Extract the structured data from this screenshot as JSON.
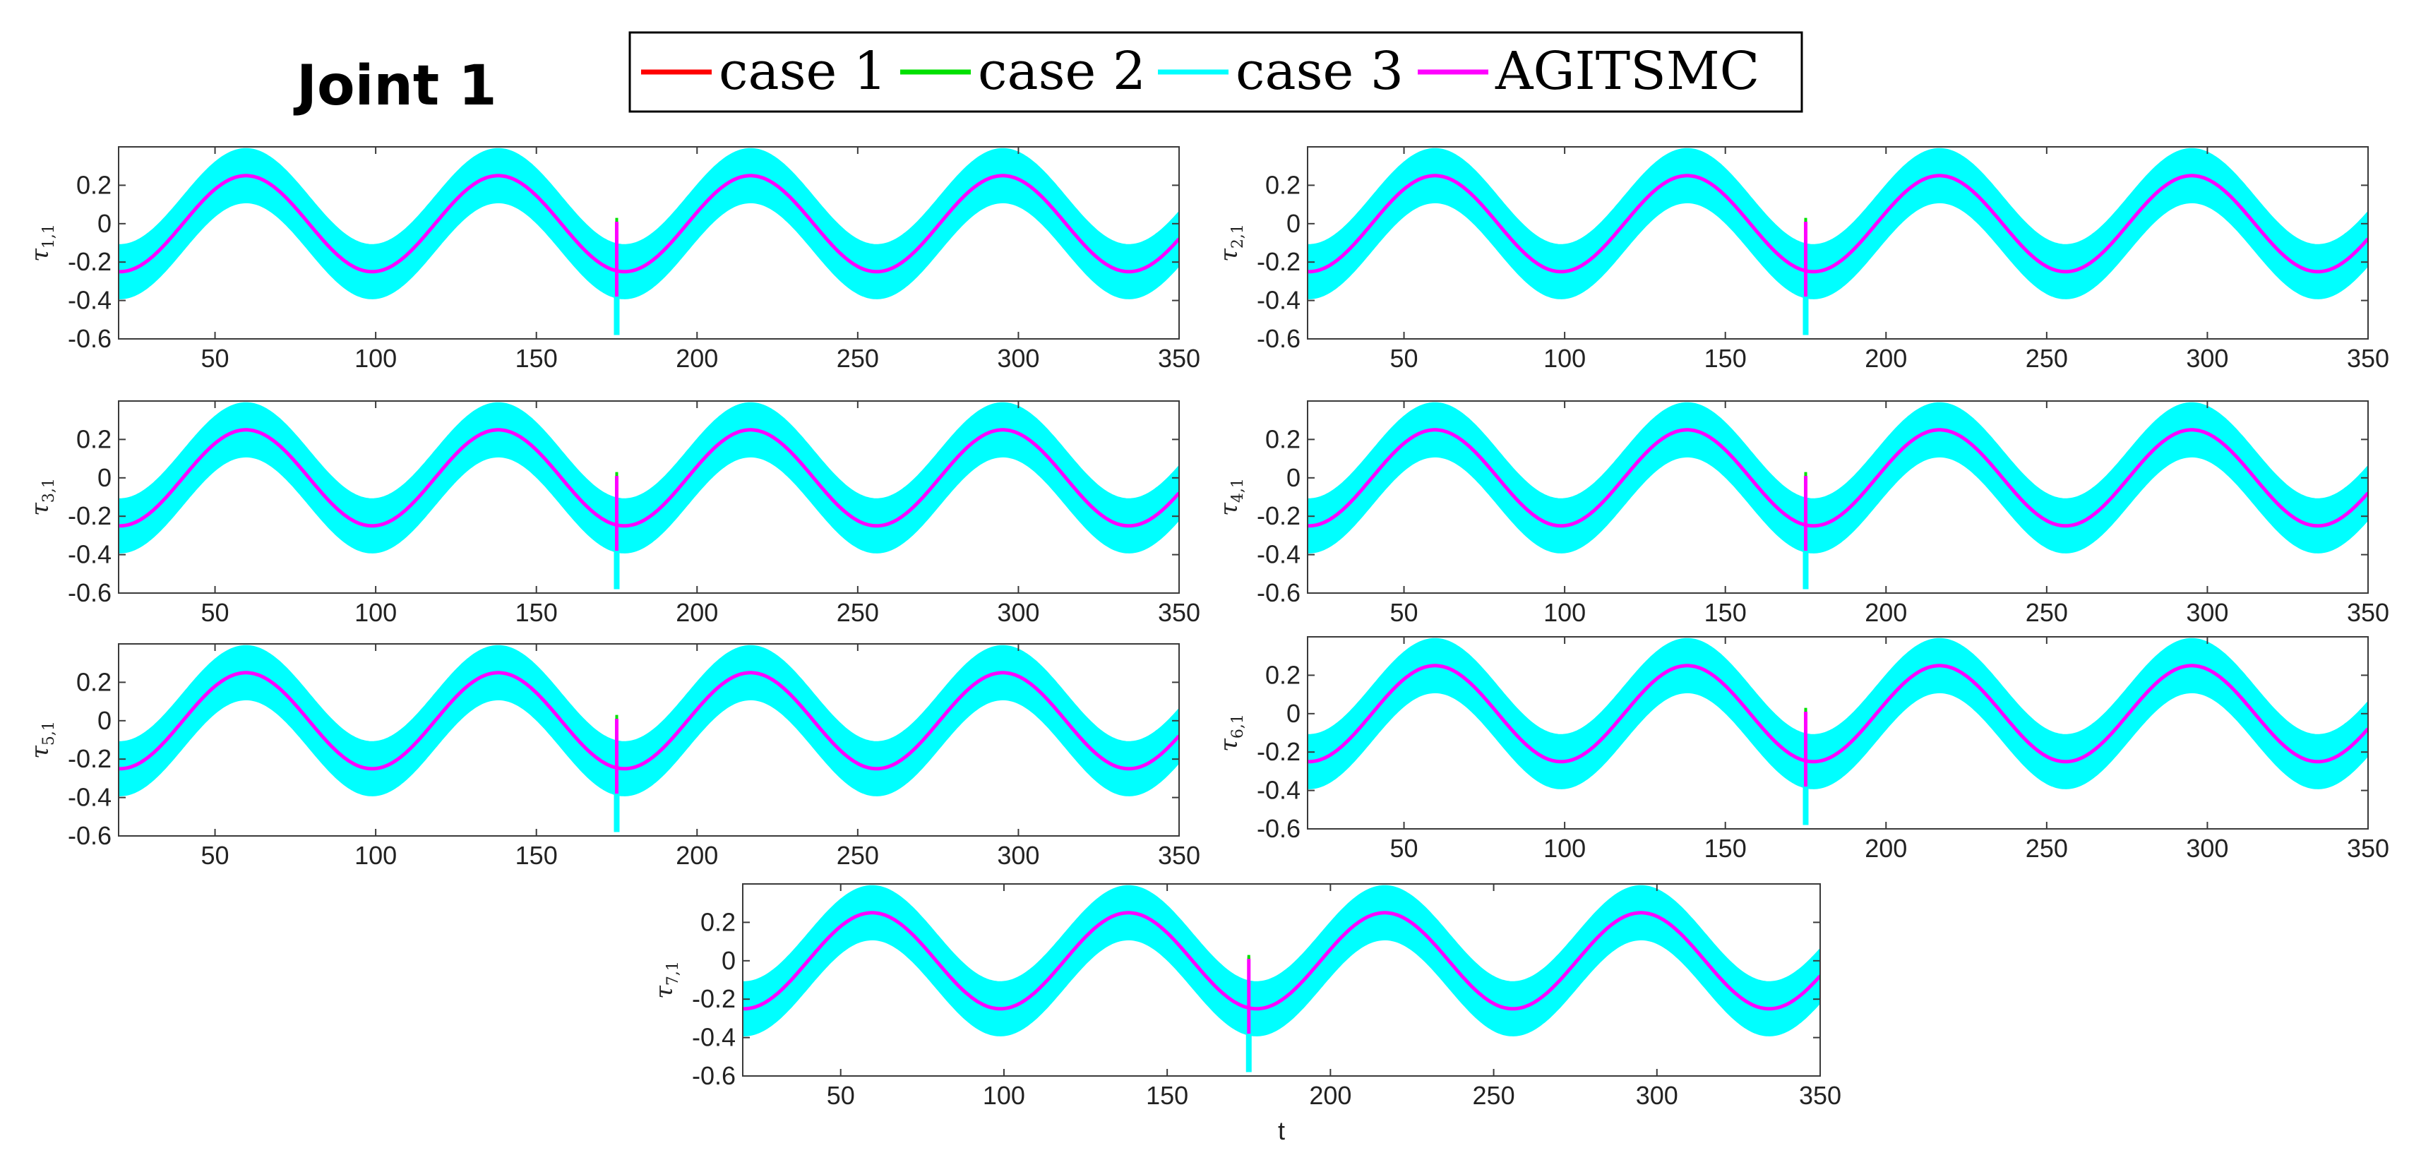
{
  "figure": {
    "title": "Joint 1"
  },
  "legend": [
    {
      "name": "case 1",
      "color": "#ff0000"
    },
    {
      "name": "case 2",
      "color": "#00e000"
    },
    {
      "name": "case 3",
      "color": "#00ffff"
    },
    {
      "name": "AGITSMC",
      "color": "#ff00ff"
    }
  ],
  "chart_data": [
    {
      "type": "line",
      "ylabel_base": "τ",
      "ylabel_sub": "1,1",
      "xlabel": "",
      "xlim": [
        20,
        350
      ],
      "ylim": [
        -0.6,
        0.4
      ],
      "xticks": [
        50,
        100,
        150,
        200,
        250,
        300,
        350
      ],
      "yticks": [
        0.2,
        0,
        -0.2,
        -0.4,
        -0.6
      ],
      "series": [
        {
          "name": "case 1",
          "function": "0.25*sin(2*pi*(t-40)/78.5)",
          "spike_at_t": 175,
          "spike_range": [
            -0.35,
            0.02
          ]
        },
        {
          "name": "case 2",
          "function": "0.25*sin(2*pi*(t-40)/78.5)",
          "spike_at_t": 175,
          "spike_range": [
            -0.35,
            0.03
          ]
        },
        {
          "name": "case 3",
          "function": "0.25*sin(2*pi*(t-40)/78.5) ± 0.14 band",
          "band_halfwidth": 0.14,
          "spike_at_t": 175,
          "spike_range": [
            -0.58,
            -0.2
          ]
        },
        {
          "name": "AGITSMC",
          "function": "0.25*sin(2*pi*(t-40)/78.5)",
          "spike_at_t": 175,
          "spike_range": [
            -0.38,
            0.01
          ]
        }
      ]
    },
    {
      "type": "line",
      "ylabel_base": "τ",
      "ylabel_sub": "2,1",
      "xlabel": "",
      "xlim": [
        20,
        350
      ],
      "ylim": [
        -0.6,
        0.4
      ],
      "xticks": [
        50,
        100,
        150,
        200,
        250,
        300,
        350
      ],
      "yticks": [
        0.2,
        0,
        -0.2,
        -0.4,
        -0.6
      ],
      "series": [
        {
          "name": "case 1",
          "function": "0.25*sin(2*pi*(t-40)/78.5)",
          "spike_at_t": 175,
          "spike_range": [
            -0.35,
            0.02
          ]
        },
        {
          "name": "case 2",
          "function": "0.25*sin(2*pi*(t-40)/78.5)",
          "spike_at_t": 175,
          "spike_range": [
            -0.35,
            0.03
          ]
        },
        {
          "name": "case 3",
          "function": "0.25*sin(2*pi*(t-40)/78.5) ± 0.14 band",
          "band_halfwidth": 0.14,
          "spike_at_t": 175,
          "spike_range": [
            -0.58,
            -0.2
          ]
        },
        {
          "name": "AGITSMC",
          "function": "0.25*sin(2*pi*(t-40)/78.5)",
          "spike_at_t": 175,
          "spike_range": [
            -0.38,
            0.01
          ]
        }
      ]
    },
    {
      "type": "line",
      "ylabel_base": "τ",
      "ylabel_sub": "3,1",
      "xlabel": "",
      "xlim": [
        20,
        350
      ],
      "ylim": [
        -0.6,
        0.4
      ],
      "xticks": [
        50,
        100,
        150,
        200,
        250,
        300,
        350
      ],
      "yticks": [
        0.2,
        0,
        -0.2,
        -0.4,
        -0.6
      ],
      "series": [
        {
          "name": "case 1",
          "function": "0.25*sin(2*pi*(t-40)/78.5)",
          "spike_at_t": 175,
          "spike_range": [
            -0.35,
            0.02
          ]
        },
        {
          "name": "case 2",
          "function": "0.25*sin(2*pi*(t-40)/78.5)",
          "spike_at_t": 175,
          "spike_range": [
            -0.35,
            0.03
          ]
        },
        {
          "name": "case 3",
          "function": "0.25*sin(2*pi*(t-40)/78.5) ± 0.14 band",
          "band_halfwidth": 0.14,
          "spike_at_t": 175,
          "spike_range": [
            -0.58,
            -0.2
          ]
        },
        {
          "name": "AGITSMC",
          "function": "0.25*sin(2*pi*(t-40)/78.5)",
          "spike_at_t": 175,
          "spike_range": [
            -0.38,
            0.01
          ]
        }
      ]
    },
    {
      "type": "line",
      "ylabel_base": "τ",
      "ylabel_sub": "4,1",
      "xlabel": "",
      "xlim": [
        20,
        350
      ],
      "ylim": [
        -0.6,
        0.4
      ],
      "xticks": [
        50,
        100,
        150,
        200,
        250,
        300,
        350
      ],
      "yticks": [
        0.2,
        0,
        -0.2,
        -0.4,
        -0.6
      ],
      "series": [
        {
          "name": "case 1",
          "function": "0.25*sin(2*pi*(t-40)/78.5)",
          "spike_at_t": 175,
          "spike_range": [
            -0.35,
            0.02
          ]
        },
        {
          "name": "case 2",
          "function": "0.25*sin(2*pi*(t-40)/78.5)",
          "spike_at_t": 175,
          "spike_range": [
            -0.35,
            0.03
          ]
        },
        {
          "name": "case 3",
          "function": "0.25*sin(2*pi*(t-40)/78.5) ± 0.14 band",
          "band_halfwidth": 0.14,
          "spike_at_t": 175,
          "spike_range": [
            -0.58,
            -0.2
          ]
        },
        {
          "name": "AGITSMC",
          "function": "0.25*sin(2*pi*(t-40)/78.5)",
          "spike_at_t": 175,
          "spike_range": [
            -0.38,
            0.01
          ]
        }
      ]
    },
    {
      "type": "line",
      "ylabel_base": "τ",
      "ylabel_sub": "5,1",
      "xlabel": "",
      "xlim": [
        20,
        350
      ],
      "ylim": [
        -0.6,
        0.4
      ],
      "xticks": [
        50,
        100,
        150,
        200,
        250,
        300,
        350
      ],
      "yticks": [
        0.2,
        0,
        -0.2,
        -0.4,
        -0.6
      ],
      "series": [
        {
          "name": "case 1",
          "function": "0.25*sin(2*pi*(t-40)/78.5)",
          "spike_at_t": 175,
          "spike_range": [
            -0.35,
            0.02
          ]
        },
        {
          "name": "case 2",
          "function": "0.25*sin(2*pi*(t-40)/78.5)",
          "spike_at_t": 175,
          "spike_range": [
            -0.35,
            0.03
          ]
        },
        {
          "name": "case 3",
          "function": "0.25*sin(2*pi*(t-40)/78.5) ± 0.14 band",
          "band_halfwidth": 0.14,
          "spike_at_t": 175,
          "spike_range": [
            -0.58,
            -0.2
          ]
        },
        {
          "name": "AGITSMC",
          "function": "0.25*sin(2*pi*(t-40)/78.5)",
          "spike_at_t": 175,
          "spike_range": [
            -0.38,
            0.01
          ]
        }
      ]
    },
    {
      "type": "line",
      "ylabel_base": "τ",
      "ylabel_sub": "6,1",
      "xlabel": "",
      "xlim": [
        20,
        350
      ],
      "ylim": [
        -0.6,
        0.4
      ],
      "xticks": [
        50,
        100,
        150,
        200,
        250,
        300,
        350
      ],
      "yticks": [
        0.2,
        0,
        -0.2,
        -0.4,
        -0.6
      ],
      "series": [
        {
          "name": "case 1",
          "function": "0.25*sin(2*pi*(t-40)/78.5)",
          "spike_at_t": 175,
          "spike_range": [
            -0.35,
            0.02
          ]
        },
        {
          "name": "case 2",
          "function": "0.25*sin(2*pi*(t-40)/78.5)",
          "spike_at_t": 175,
          "spike_range": [
            -0.35,
            0.03
          ]
        },
        {
          "name": "case 3",
          "function": "0.25*sin(2*pi*(t-40)/78.5) ± 0.14 band",
          "band_halfwidth": 0.14,
          "spike_at_t": 175,
          "spike_range": [
            -0.58,
            -0.2
          ]
        },
        {
          "name": "AGITSMC",
          "function": "0.25*sin(2*pi*(t-40)/78.5)",
          "spike_at_t": 175,
          "spike_range": [
            -0.38,
            0.01
          ]
        }
      ]
    },
    {
      "type": "line",
      "ylabel_base": "τ",
      "ylabel_sub": "7,1",
      "xlabel": "t",
      "xlim": [
        20,
        350
      ],
      "ylim": [
        -0.6,
        0.4
      ],
      "xticks": [
        50,
        100,
        150,
        200,
        250,
        300,
        350
      ],
      "yticks": [
        0.2,
        0,
        -0.2,
        -0.4,
        -0.6
      ],
      "series": [
        {
          "name": "case 1",
          "function": "0.25*sin(2*pi*(t-40)/78.5)",
          "spike_at_t": 175,
          "spike_range": [
            -0.35,
            0.02
          ]
        },
        {
          "name": "case 2",
          "function": "0.25*sin(2*pi*(t-40)/78.5)",
          "spike_at_t": 175,
          "spike_range": [
            -0.35,
            0.03
          ]
        },
        {
          "name": "case 3",
          "function": "0.25*sin(2*pi*(t-40)/78.5) ± 0.14 band",
          "band_halfwidth": 0.14,
          "spike_at_t": 175,
          "spike_range": [
            -0.58,
            -0.2
          ]
        },
        {
          "name": "AGITSMC",
          "function": "0.25*sin(2*pi*(t-40)/78.5)",
          "spike_at_t": 175,
          "spike_range": [
            -0.38,
            0.01
          ]
        }
      ]
    }
  ]
}
